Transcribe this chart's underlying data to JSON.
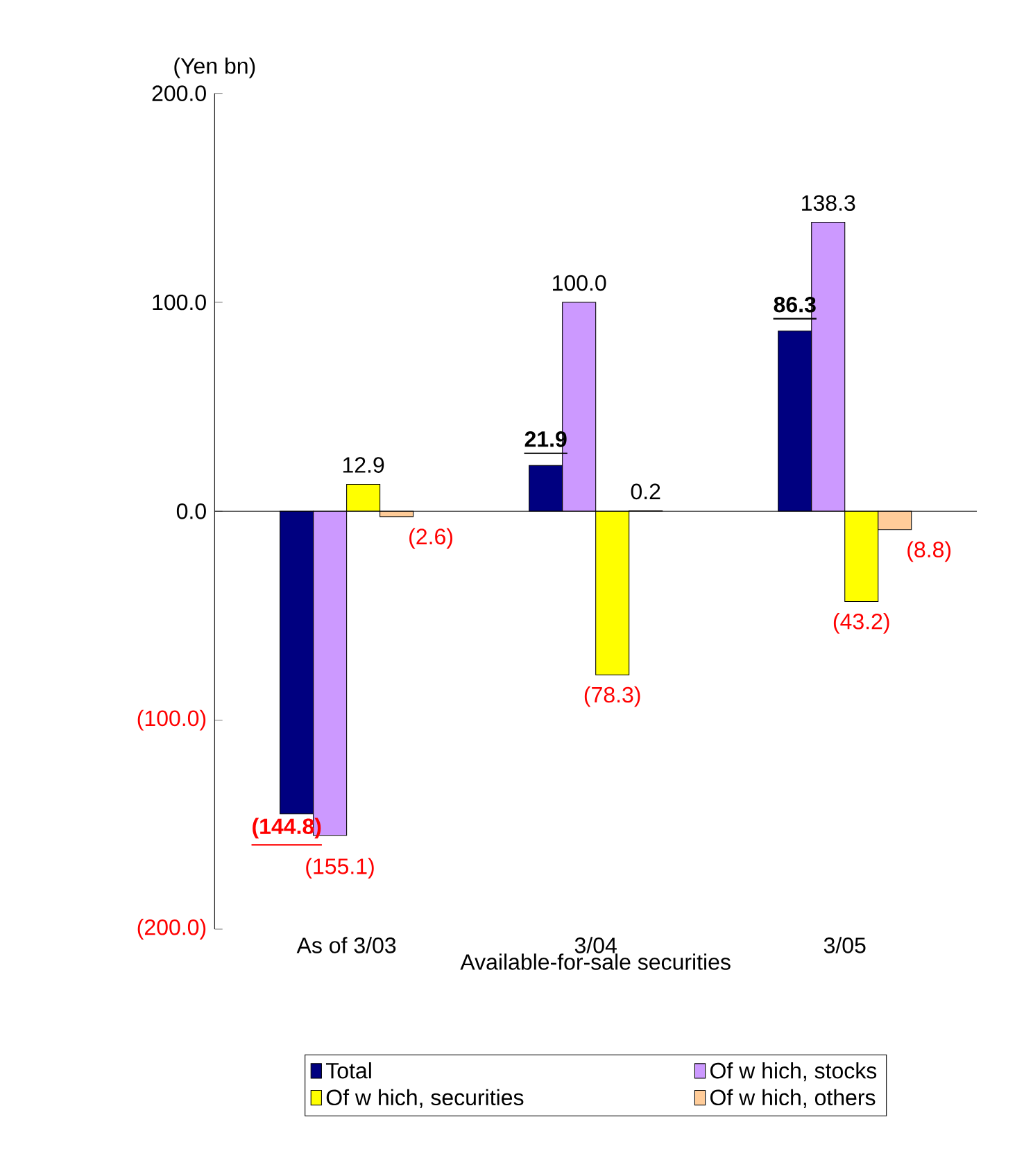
{
  "chart_data": {
    "type": "bar",
    "ylabel": "(Yen bn)",
    "xlabel": "Available-for-sale securities",
    "categories": [
      "As of 3/03",
      "3/04",
      "3/05"
    ],
    "series": [
      {
        "name": "Total",
        "color": "#000080",
        "values": [
          -144.8,
          21.9,
          86.3
        ],
        "value_labels": [
          "(144.8)",
          "21.9",
          "86.3"
        ]
      },
      {
        "name": "Of w hich, stocks",
        "color": "#cc99ff",
        "values": [
          -155.1,
          100.0,
          138.3
        ],
        "value_labels": [
          "(155.1)",
          "100.0",
          "138.3"
        ]
      },
      {
        "name": "Of w hich, securities",
        "color": "#ffff00",
        "values": [
          12.9,
          -78.3,
          -43.2
        ],
        "value_labels": [
          "12.9",
          "(78.3)",
          "(43.2)"
        ]
      },
      {
        "name": "Of w hich, others",
        "color": "#ffcc99",
        "values": [
          -2.6,
          0.2,
          -8.8
        ],
        "value_labels": [
          "(2.6)",
          "0.2",
          "(8.8)"
        ]
      }
    ],
    "ylim": [
      -200,
      200
    ],
    "yticks": [
      {
        "value": 200,
        "label": "200.0"
      },
      {
        "value": 100,
        "label": "100.0"
      },
      {
        "value": 0,
        "label": "0.0"
      },
      {
        "value": -100,
        "label": "(100.0)"
      },
      {
        "value": -200,
        "label": "(200.0)"
      }
    ],
    "legend": "bottom"
  }
}
